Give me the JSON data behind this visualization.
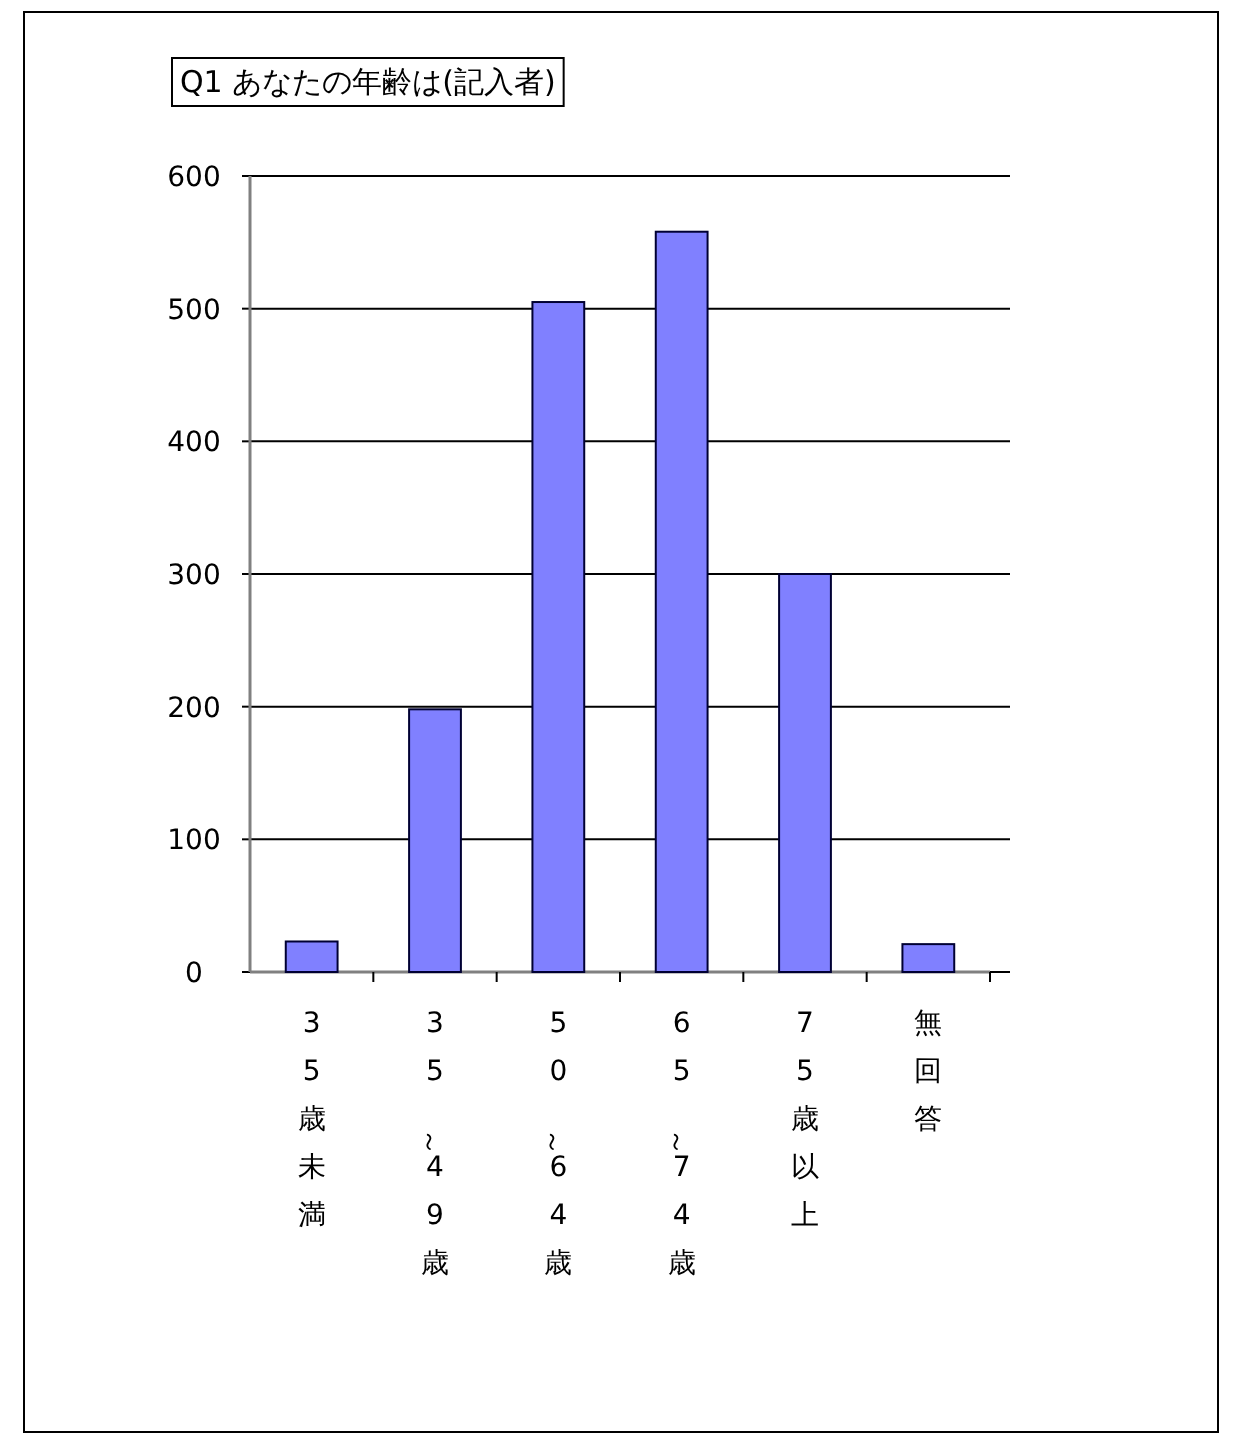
{
  "chart_data": {
    "type": "bar",
    "title": "Q1 あなたの年齢は(記入者)",
    "categories": [
      "35歳未満",
      "35～49歳",
      "50～64歳",
      "65～74歳",
      "75歳以上",
      "無回答"
    ],
    "values": [
      23,
      198,
      505,
      558,
      300,
      21
    ],
    "color": "#8080ff",
    "ylim": [
      0,
      600
    ],
    "yticks": [
      0,
      100,
      200,
      300,
      400,
      500,
      600
    ],
    "grid": "y"
  }
}
